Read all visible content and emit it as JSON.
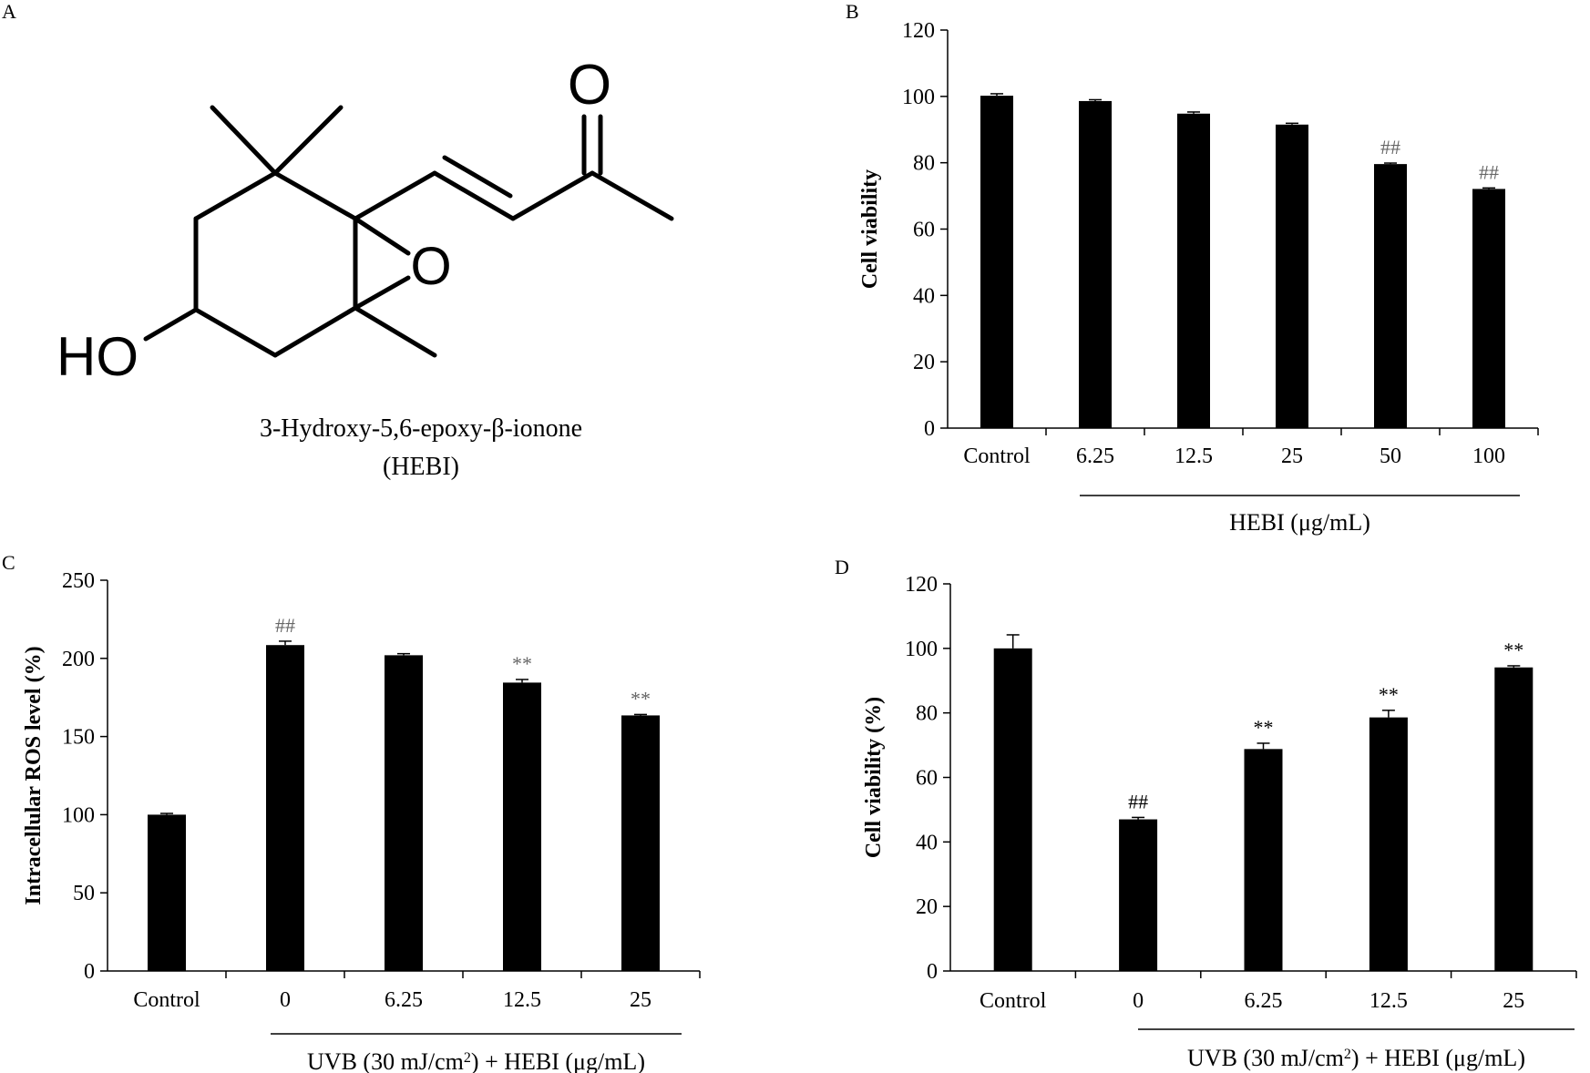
{
  "panel_labels": {
    "a": "A",
    "b": "B",
    "c": "C",
    "d": "D"
  },
  "structure": {
    "name_line1": "3-Hydroxy-5,6-epoxy-β-ionone",
    "name_line2": "(HEBI)",
    "atom_o_ketone": "O",
    "atom_o_epoxide": "O",
    "atom_ho": "HO"
  },
  "chart_data": [
    {
      "panel": "B",
      "type": "bar",
      "ylabel": "Cell viability",
      "xlabel": "HEBI (μg/mL)",
      "group_bracket": {
        "from": 1,
        "to": 5
      },
      "categories": [
        "Control",
        "6.25",
        "12.5",
        "25",
        "50",
        "100"
      ],
      "values": [
        100.2,
        98.6,
        94.8,
        91.5,
        79.6,
        72.1
      ],
      "errors": [
        0.6,
        0.4,
        0.5,
        0.4,
        0.3,
        0.3
      ],
      "annotations": [
        "",
        "",
        "",
        "",
        "##",
        "##"
      ],
      "ylim": [
        0,
        120
      ],
      "yticks": [
        0,
        20,
        40,
        60,
        80,
        100,
        120
      ],
      "grid": false,
      "bar_color": "#000000",
      "annotation_color": "#666666"
    },
    {
      "panel": "C",
      "type": "bar",
      "ylabel": "Intracellular ROS level (%)",
      "xlabel": {
        "pre": "UVB (30 mJ/cm",
        "sup": "2",
        "post": ") + HEBI (μg/mL)"
      },
      "group_bracket": {
        "from": 1,
        "to": 4
      },
      "categories": [
        "Control",
        "0",
        "6.25",
        "12.5",
        "25"
      ],
      "values": [
        100,
        208.5,
        202,
        184.5,
        163.5
      ],
      "errors": [
        0.8,
        2.5,
        1.0,
        2.0,
        0.6
      ],
      "annotations": [
        "",
        "##",
        "",
        "**",
        "**"
      ],
      "ylim": [
        0,
        250
      ],
      "yticks": [
        0,
        50,
        100,
        150,
        200,
        250
      ],
      "grid": false,
      "bar_color": "#000000",
      "annotation_color": "#666666"
    },
    {
      "panel": "D",
      "type": "bar",
      "ylabel": "Cell viability (%)",
      "xlabel": {
        "pre": "UVB (30 mJ/cm",
        "sup": "2",
        "post": ") + HEBI (μg/mL)"
      },
      "group_bracket": {
        "from": 1,
        "to": 4
      },
      "categories": [
        "Control",
        "0",
        "6.25",
        "12.5",
        "25"
      ],
      "values": [
        100,
        47,
        68.8,
        78.6,
        94.1
      ],
      "errors": [
        4.2,
        0.6,
        1.8,
        2.2,
        0.5
      ],
      "annotations": [
        "",
        "##",
        "**",
        "**",
        "**"
      ],
      "ylim": [
        0,
        120
      ],
      "yticks": [
        0,
        20,
        40,
        60,
        80,
        100,
        120
      ],
      "grid": false,
      "bar_color": "#000000",
      "annotation_color": "#000000"
    }
  ]
}
